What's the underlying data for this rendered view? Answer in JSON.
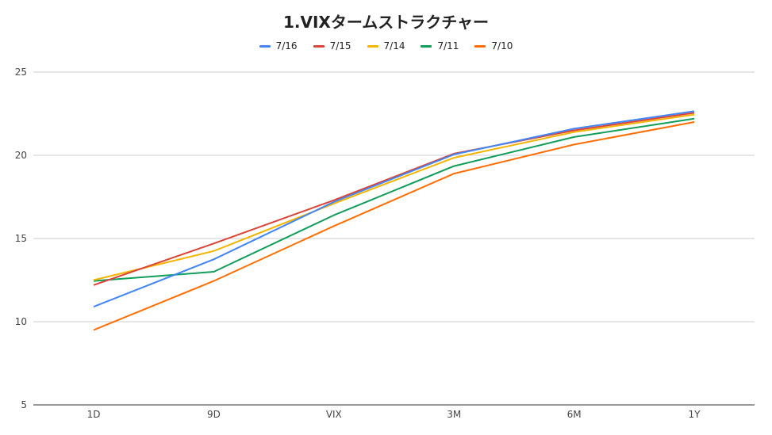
{
  "chart_data": {
    "type": "line",
    "title": "1.VIXタームストラクチャー",
    "categories": [
      "1D",
      "9D",
      "VIX",
      "3M",
      "6M",
      "1Y"
    ],
    "ylim": [
      5,
      25
    ],
    "yticks": [
      5,
      10,
      15,
      20,
      25
    ],
    "grid": true,
    "legend_position": "top",
    "series": [
      {
        "name": "7/16",
        "color": "#4285f4",
        "values": [
          10.9,
          13.75,
          17.2,
          20.05,
          21.6,
          22.65
        ]
      },
      {
        "name": "7/15",
        "color": "#db4437",
        "values": [
          12.2,
          14.7,
          17.3,
          20.1,
          21.5,
          22.55
        ]
      },
      {
        "name": "7/14",
        "color": "#f4b400",
        "values": [
          12.5,
          14.25,
          17.1,
          19.85,
          21.4,
          22.45
        ]
      },
      {
        "name": "7/11",
        "color": "#0f9d58",
        "values": [
          12.45,
          13.0,
          16.4,
          19.35,
          21.1,
          22.2
        ]
      },
      {
        "name": "7/10",
        "color": "#ff6d00",
        "values": [
          9.5,
          12.45,
          15.75,
          18.9,
          20.65,
          22.0
        ]
      }
    ]
  }
}
